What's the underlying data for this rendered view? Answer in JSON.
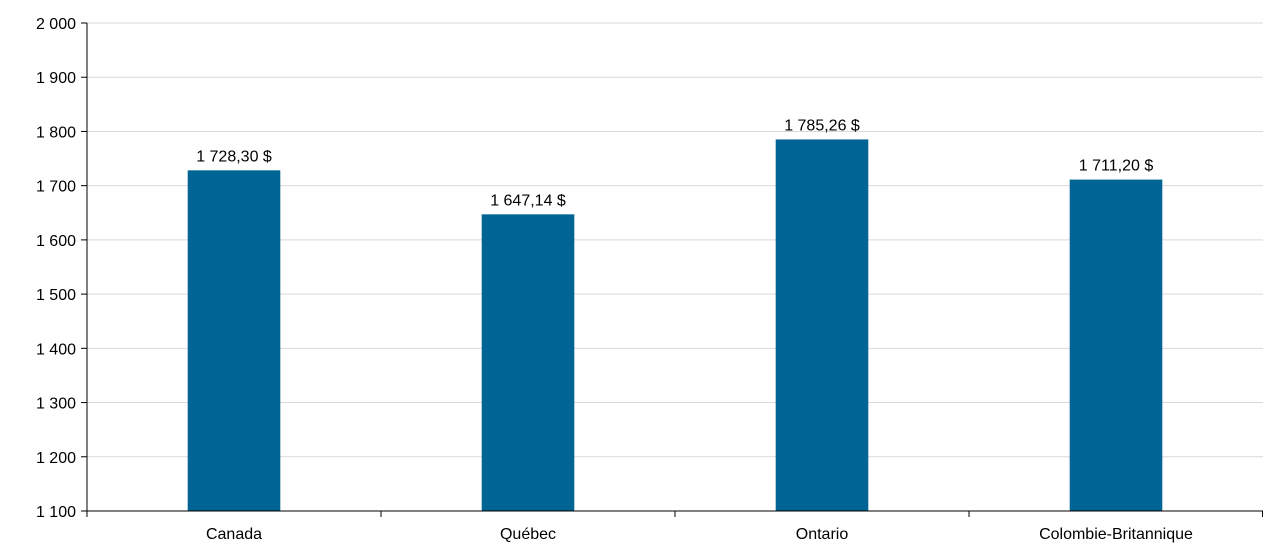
{
  "chart_data": {
    "type": "bar",
    "title": "",
    "xlabel": "",
    "ylabel": "",
    "categories": [
      "Canada",
      "Québec",
      "Ontario",
      "Colombie-Britannique"
    ],
    "values": [
      1728.3,
      1647.14,
      1785.26,
      1711.2
    ],
    "data_labels": [
      "1 728,30 $",
      "1 647,14 $",
      "1 785,26 $",
      "1 711,20 $"
    ],
    "ylim": [
      1100,
      2000
    ],
    "yticks": [
      1100,
      1200,
      1300,
      1400,
      1500,
      1600,
      1700,
      1800,
      1900,
      2000
    ],
    "ytick_labels": [
      "1 100",
      "1 200",
      "1 300",
      "1 400",
      "1 500",
      "1 600",
      "1 700",
      "1 800",
      "1 900",
      "2 000"
    ],
    "grid": true,
    "legend": "none",
    "bar_color": "#006494",
    "grid_color": "#d9d9d9"
  }
}
